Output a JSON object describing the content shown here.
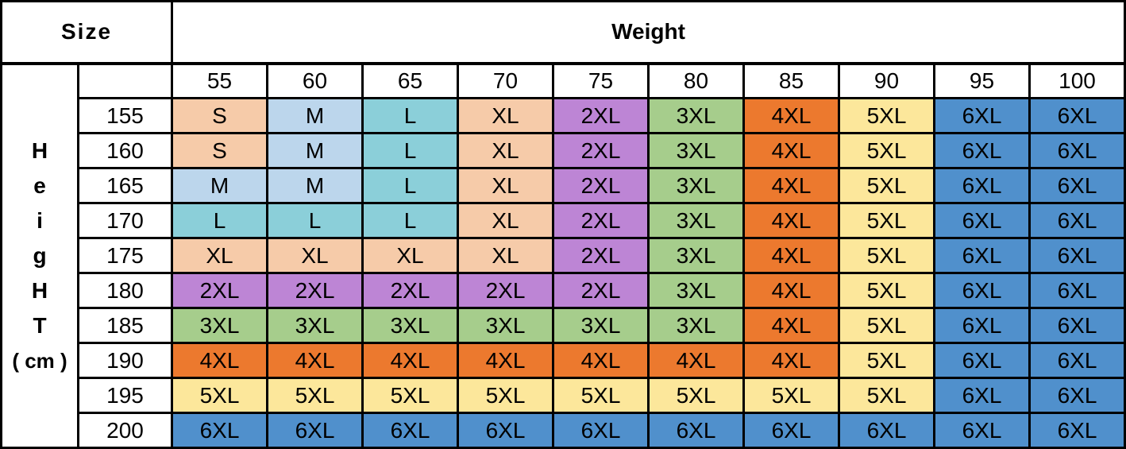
{
  "header": {
    "size_label": "Size",
    "weight_label": "Weight"
  },
  "height_axis_letters": [
    "H",
    "e",
    "i",
    "g",
    "H",
    "T",
    "( cm )"
  ],
  "size_colors": {
    "S": "#F6CBA9",
    "M": "#BCD6EC",
    "L": "#8BCFD9",
    "XL": "#F6CBA9",
    "2XL": "#BD85D5",
    "3XL": "#A6CD8C",
    "4XL": "#EC792E",
    "5XL": "#FCE79B",
    "6XL": "#5090CC"
  },
  "border_color": "#000000",
  "chart_data": {
    "type": "table",
    "title": "Size",
    "columns_label": "Weight",
    "rows_label": "Height (cm)",
    "weight_columns": [
      "55",
      "60",
      "65",
      "70",
      "75",
      "80",
      "85",
      "90",
      "95",
      "100"
    ],
    "height_rows": [
      "155",
      "160",
      "165",
      "170",
      "175",
      "180",
      "185",
      "190",
      "195",
      "200"
    ],
    "cells": [
      [
        "S",
        "M",
        "L",
        "XL",
        "2XL",
        "3XL",
        "4XL",
        "5XL",
        "6XL",
        "6XL"
      ],
      [
        "S",
        "M",
        "L",
        "XL",
        "2XL",
        "3XL",
        "4XL",
        "5XL",
        "6XL",
        "6XL"
      ],
      [
        "M",
        "M",
        "L",
        "XL",
        "2XL",
        "3XL",
        "4XL",
        "5XL",
        "6XL",
        "6XL"
      ],
      [
        "L",
        "L",
        "L",
        "XL",
        "2XL",
        "3XL",
        "4XL",
        "5XL",
        "6XL",
        "6XL"
      ],
      [
        "XL",
        "XL",
        "XL",
        "XL",
        "2XL",
        "3XL",
        "4XL",
        "5XL",
        "6XL",
        "6XL"
      ],
      [
        "2XL",
        "2XL",
        "2XL",
        "2XL",
        "2XL",
        "3XL",
        "4XL",
        "5XL",
        "6XL",
        "6XL"
      ],
      [
        "3XL",
        "3XL",
        "3XL",
        "3XL",
        "3XL",
        "3XL",
        "4XL",
        "5XL",
        "6XL",
        "6XL"
      ],
      [
        "4XL",
        "4XL",
        "4XL",
        "4XL",
        "4XL",
        "4XL",
        "4XL",
        "5XL",
        "6XL",
        "6XL"
      ],
      [
        "5XL",
        "5XL",
        "5XL",
        "5XL",
        "5XL",
        "5XL",
        "5XL",
        "5XL",
        "6XL",
        "6XL"
      ],
      [
        "6XL",
        "6XL",
        "6XL",
        "6XL",
        "6XL",
        "6XL",
        "6XL",
        "6XL",
        "6XL",
        "6XL"
      ]
    ]
  }
}
